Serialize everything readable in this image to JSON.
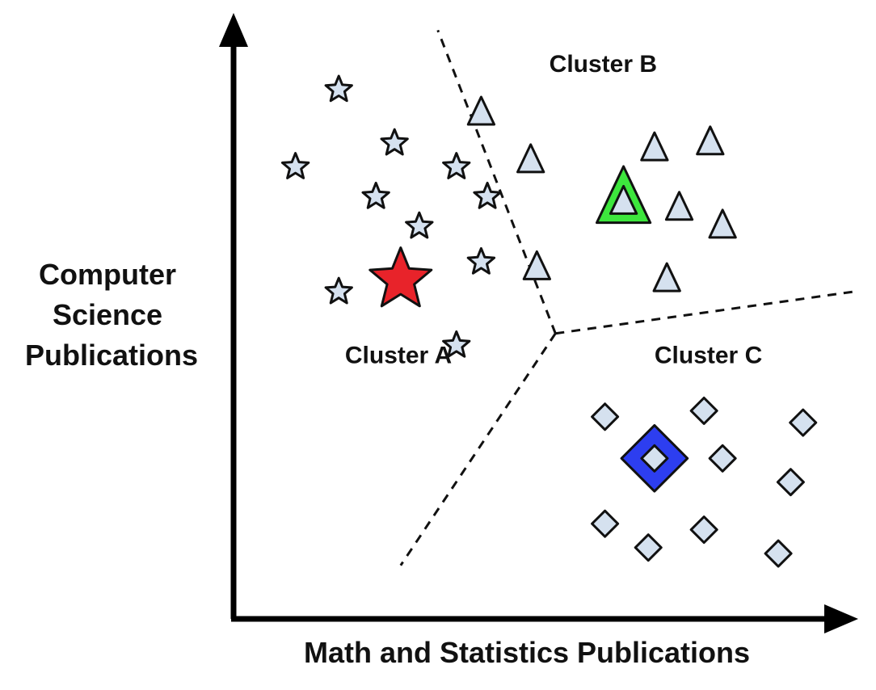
{
  "chart_data": {
    "type": "scatter",
    "title": "",
    "xlabel": "Math and Statistics Publications",
    "ylabel": [
      "Computer",
      "Science",
      "Publications"
    ],
    "xlim": [
      0,
      1
    ],
    "ylim": [
      0,
      1
    ],
    "grid": false,
    "colors": {
      "point_fill": "#d5e1ef",
      "point_stroke": "#111111",
      "centroid_a": "#e8232a",
      "centroid_b": "#3de63d",
      "centroid_c": "#2d3ef0",
      "boundary": "#111111"
    },
    "clusters": [
      {
        "name": "Cluster A",
        "marker": "star",
        "centroid": {
          "x": 0.27,
          "y": 0.57
        },
        "points": [
          {
            "x": 0.17,
            "y": 0.89
          },
          {
            "x": 0.26,
            "y": 0.8
          },
          {
            "x": 0.1,
            "y": 0.76
          },
          {
            "x": 0.36,
            "y": 0.76
          },
          {
            "x": 0.23,
            "y": 0.71
          },
          {
            "x": 0.41,
            "y": 0.71
          },
          {
            "x": 0.3,
            "y": 0.66
          },
          {
            "x": 0.4,
            "y": 0.6
          },
          {
            "x": 0.17,
            "y": 0.55
          },
          {
            "x": 0.36,
            "y": 0.46
          }
        ]
      },
      {
        "name": "Cluster B",
        "marker": "triangle",
        "centroid": {
          "x": 0.63,
          "y": 0.7
        },
        "points": [
          {
            "x": 0.4,
            "y": 0.85
          },
          {
            "x": 0.48,
            "y": 0.77
          },
          {
            "x": 0.68,
            "y": 0.79
          },
          {
            "x": 0.77,
            "y": 0.8
          },
          {
            "x": 0.63,
            "y": 0.7
          },
          {
            "x": 0.72,
            "y": 0.69
          },
          {
            "x": 0.79,
            "y": 0.66
          },
          {
            "x": 0.49,
            "y": 0.59
          },
          {
            "x": 0.7,
            "y": 0.57
          }
        ]
      },
      {
        "name": "Cluster C",
        "marker": "diamond",
        "centroid": {
          "x": 0.68,
          "y": 0.27
        },
        "points": [
          {
            "x": 0.6,
            "y": 0.34
          },
          {
            "x": 0.76,
            "y": 0.35
          },
          {
            "x": 0.92,
            "y": 0.33
          },
          {
            "x": 0.68,
            "y": 0.27
          },
          {
            "x": 0.79,
            "y": 0.27
          },
          {
            "x": 0.9,
            "y": 0.23
          },
          {
            "x": 0.6,
            "y": 0.16
          },
          {
            "x": 0.67,
            "y": 0.12
          },
          {
            "x": 0.76,
            "y": 0.15
          },
          {
            "x": 0.88,
            "y": 0.11
          }
        ]
      }
    ],
    "decision_boundaries": [
      {
        "from": {
          "x": 0.52,
          "y": 0.48
        },
        "to": {
          "x": 0.33,
          "y": 0.99
        }
      },
      {
        "from": {
          "x": 0.52,
          "y": 0.48
        },
        "to": {
          "x": 1.0,
          "y": 0.55
        }
      },
      {
        "from": {
          "x": 0.52,
          "y": 0.48
        },
        "to": {
          "x": 0.27,
          "y": 0.09
        }
      }
    ],
    "annotations": [
      {
        "text": "Cluster A",
        "x": 0.18,
        "y": 0.43
      },
      {
        "text": "Cluster B",
        "x": 0.51,
        "y": 0.92
      },
      {
        "text": "Cluster C",
        "x": 0.68,
        "y": 0.43
      }
    ]
  }
}
